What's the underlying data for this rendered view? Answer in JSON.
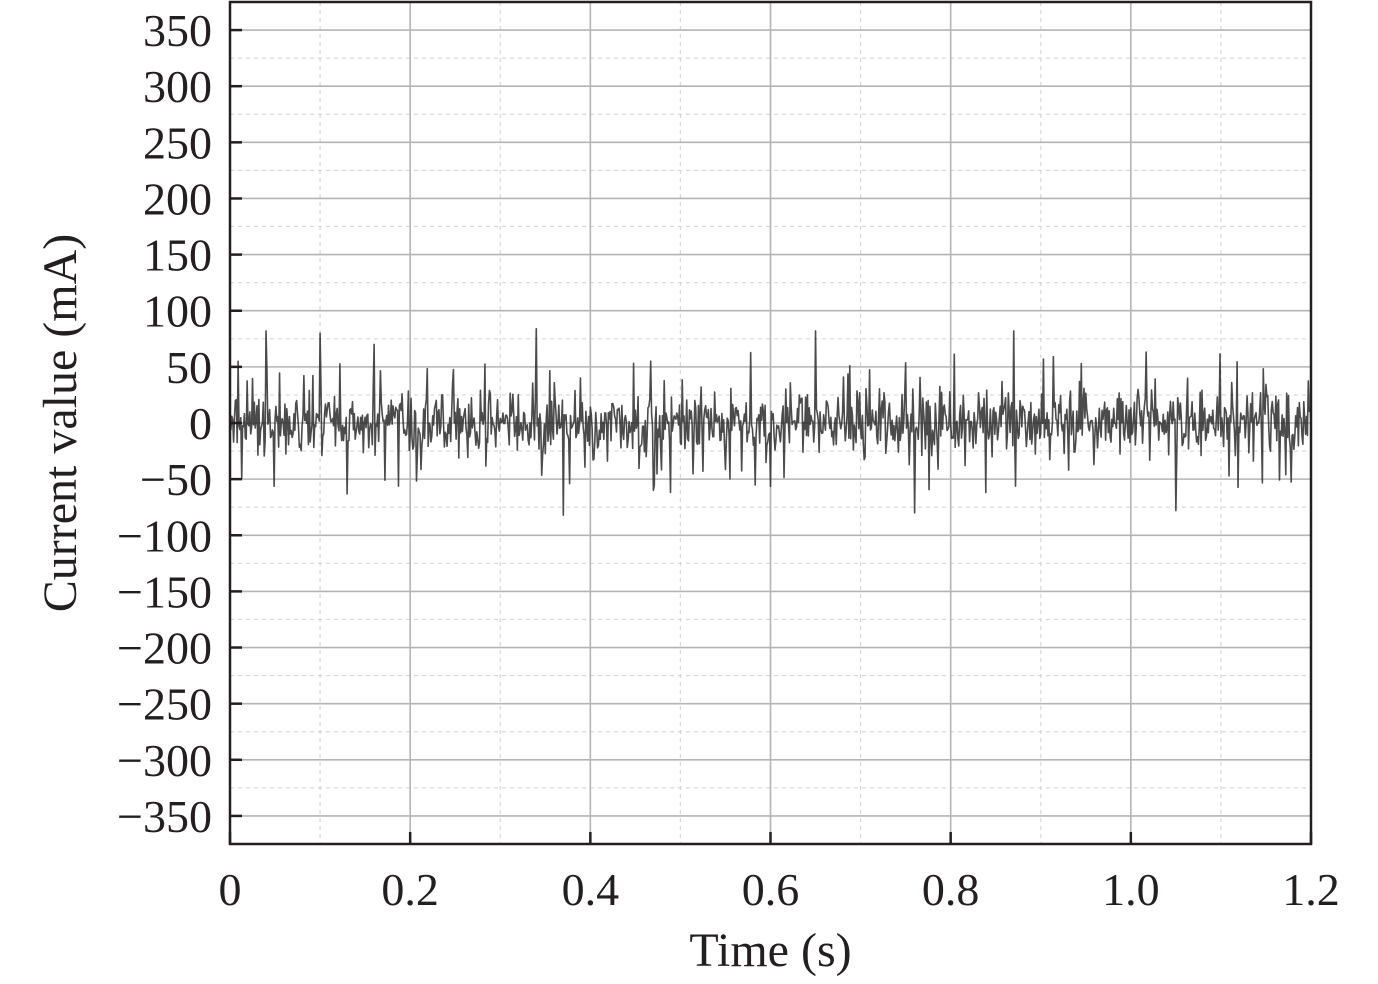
{
  "chart_data": {
    "type": "line",
    "title": "",
    "xlabel": "Time (s)",
    "ylabel": "Current value (mA)",
    "xlim": [
      0,
      1.2
    ],
    "ylim": [
      -375,
      375
    ],
    "x_ticks": [
      0,
      0.2,
      0.4,
      0.6,
      0.8,
      1.0,
      1.2
    ],
    "x_tick_labels": [
      "0",
      "0.2",
      "0.4",
      "0.6",
      "0.8",
      "1.0",
      "1.2"
    ],
    "x_minor_ticks": [
      0.1,
      0.3,
      0.5,
      0.7,
      0.9,
      1.1
    ],
    "y_ticks": [
      350,
      300,
      250,
      200,
      150,
      100,
      50,
      0,
      -50,
      -100,
      -150,
      -200,
      -250,
      -300,
      -350
    ],
    "y_tick_labels": [
      "350",
      "300",
      "250",
      "200",
      "150",
      "100",
      "50",
      "0",
      "−50",
      "−100",
      "−150",
      "−200",
      "−250",
      "−300",
      "−350"
    ],
    "y_minor_ticks": [
      375,
      325,
      275,
      225,
      175,
      125,
      75,
      25,
      -25,
      -75,
      -125,
      -175,
      -225,
      -275,
      -325,
      -375
    ],
    "grid": true,
    "legend": "none",
    "series": [
      {
        "color": "#2b2b2b",
        "sample_interval_s": 0.001,
        "noise_rms": 22,
        "spike_peak_range": [
          -82,
          84
        ],
        "x": [
          0,
          0.04,
          0.1,
          0.16,
          0.34,
          0.37,
          0.65,
          0.76,
          0.87,
          1.05,
          1.2
        ],
        "values": [
          0,
          82,
          80,
          70,
          84,
          -82,
          82,
          -80,
          82,
          -78,
          0
        ]
      }
    ]
  },
  "colors": {
    "background": "#ffffff",
    "axis": "#231f20",
    "grid_major": "#b4b4b4",
    "grid_minor": "#d8d8d8",
    "signal": "#2b2b2b"
  }
}
